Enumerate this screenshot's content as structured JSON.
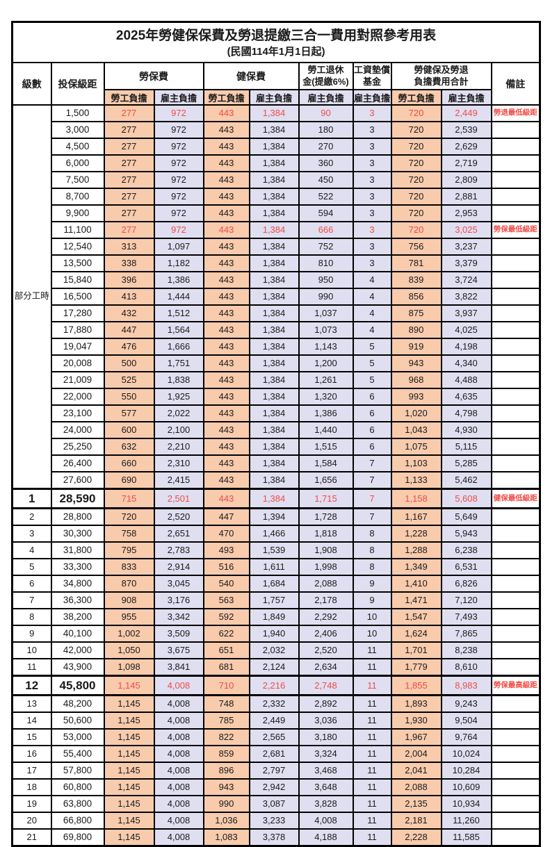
{
  "title": "2025年勞健保保費及勞退提繳三合一費用對照參考用表",
  "subtitle": "(民國114年1月1日起)",
  "headers": {
    "level": "級數",
    "bracket": "投保級距",
    "labor_ins": "勞保費",
    "health_ins": "健保費",
    "pension": "勞工退休\n金(提繳6%)",
    "wage_fund": "工資墊償\n基金",
    "total": "勞健保及勞退\n負擔費用合計",
    "remark": "備註",
    "employee": "勞工負擔",
    "employer": "雇主負擔"
  },
  "part_time_label": "部分工時",
  "colors": {
    "employee_bg": "#F8CBAD",
    "employer_bg": "#DFDFF1",
    "highlight_red": "#F24B44",
    "border": "#000000"
  },
  "rows": [
    {
      "level": "",
      "bracket": "1,500",
      "values": [
        "277",
        "972",
        "443",
        "1,384",
        "90",
        "3",
        "720",
        "2,449"
      ],
      "note": "勞退最低級距",
      "red": true
    },
    {
      "level": "",
      "bracket": "3,000",
      "values": [
        "277",
        "972",
        "443",
        "1,384",
        "180",
        "3",
        "720",
        "2,539"
      ],
      "note": ""
    },
    {
      "level": "",
      "bracket": "4,500",
      "values": [
        "277",
        "972",
        "443",
        "1,384",
        "270",
        "3",
        "720",
        "2,629"
      ],
      "note": ""
    },
    {
      "level": "",
      "bracket": "6,000",
      "values": [
        "277",
        "972",
        "443",
        "1,384",
        "360",
        "3",
        "720",
        "2,719"
      ],
      "note": ""
    },
    {
      "level": "",
      "bracket": "7,500",
      "values": [
        "277",
        "972",
        "443",
        "1,384",
        "450",
        "3",
        "720",
        "2,809"
      ],
      "note": ""
    },
    {
      "level": "",
      "bracket": "8,700",
      "values": [
        "277",
        "972",
        "443",
        "1,384",
        "522",
        "3",
        "720",
        "2,881"
      ],
      "note": ""
    },
    {
      "level": "",
      "bracket": "9,900",
      "values": [
        "277",
        "972",
        "443",
        "1,384",
        "594",
        "3",
        "720",
        "2,953"
      ],
      "note": ""
    },
    {
      "level": "",
      "bracket": "11,100",
      "values": [
        "277",
        "972",
        "443",
        "1,384",
        "666",
        "3",
        "720",
        "3,025"
      ],
      "note": "勞保最低級距",
      "red": true
    },
    {
      "level": "",
      "bracket": "12,540",
      "values": [
        "313",
        "1,097",
        "443",
        "1,384",
        "752",
        "3",
        "756",
        "3,237"
      ],
      "note": ""
    },
    {
      "level": "",
      "bracket": "13,500",
      "values": [
        "338",
        "1,182",
        "443",
        "1,384",
        "810",
        "3",
        "781",
        "3,379"
      ],
      "note": ""
    },
    {
      "level": "",
      "bracket": "15,840",
      "values": [
        "396",
        "1,386",
        "443",
        "1,384",
        "950",
        "4",
        "839",
        "3,724"
      ],
      "note": ""
    },
    {
      "level": "",
      "bracket": "16,500",
      "values": [
        "413",
        "1,444",
        "443",
        "1,384",
        "990",
        "4",
        "856",
        "3,822"
      ],
      "note": ""
    },
    {
      "level": "",
      "bracket": "17,280",
      "values": [
        "432",
        "1,512",
        "443",
        "1,384",
        "1,037",
        "4",
        "875",
        "3,937"
      ],
      "note": ""
    },
    {
      "level": "",
      "bracket": "17,880",
      "values": [
        "447",
        "1,564",
        "443",
        "1,384",
        "1,073",
        "4",
        "890",
        "4,025"
      ],
      "note": ""
    },
    {
      "level": "",
      "bracket": "19,047",
      "values": [
        "476",
        "1,666",
        "443",
        "1,384",
        "1,143",
        "5",
        "919",
        "4,198"
      ],
      "note": ""
    },
    {
      "level": "",
      "bracket": "20,008",
      "values": [
        "500",
        "1,751",
        "443",
        "1,384",
        "1,200",
        "5",
        "943",
        "4,340"
      ],
      "note": ""
    },
    {
      "level": "",
      "bracket": "21,009",
      "values": [
        "525",
        "1,838",
        "443",
        "1,384",
        "1,261",
        "5",
        "968",
        "4,488"
      ],
      "note": ""
    },
    {
      "level": "",
      "bracket": "22,000",
      "values": [
        "550",
        "1,925",
        "443",
        "1,384",
        "1,320",
        "6",
        "993",
        "4,635"
      ],
      "note": ""
    },
    {
      "level": "",
      "bracket": "23,100",
      "values": [
        "577",
        "2,022",
        "443",
        "1,384",
        "1,386",
        "6",
        "1,020",
        "4,798"
      ],
      "note": ""
    },
    {
      "level": "",
      "bracket": "24,000",
      "values": [
        "600",
        "2,100",
        "443",
        "1,384",
        "1,440",
        "6",
        "1,043",
        "4,930"
      ],
      "note": ""
    },
    {
      "level": "",
      "bracket": "25,250",
      "values": [
        "632",
        "2,210",
        "443",
        "1,384",
        "1,515",
        "6",
        "1,075",
        "5,115"
      ],
      "note": ""
    },
    {
      "level": "",
      "bracket": "26,400",
      "values": [
        "660",
        "2,310",
        "443",
        "1,384",
        "1,584",
        "7",
        "1,103",
        "5,285"
      ],
      "note": ""
    },
    {
      "level": "",
      "bracket": "27,600",
      "values": [
        "690",
        "2,415",
        "443",
        "1,384",
        "1,656",
        "7",
        "1,133",
        "5,462"
      ],
      "note": ""
    },
    {
      "level": "1",
      "bracket": "28,590",
      "values": [
        "715",
        "2,501",
        "443",
        "1,384",
        "1,715",
        "7",
        "1,158",
        "5,608"
      ],
      "note": "健保最低級距",
      "red": true,
      "big": true
    },
    {
      "level": "2",
      "bracket": "28,800",
      "values": [
        "720",
        "2,520",
        "447",
        "1,394",
        "1,728",
        "7",
        "1,167",
        "5,649"
      ],
      "note": ""
    },
    {
      "level": "3",
      "bracket": "30,300",
      "values": [
        "758",
        "2,651",
        "470",
        "1,466",
        "1,818",
        "8",
        "1,228",
        "5,943"
      ],
      "note": ""
    },
    {
      "level": "4",
      "bracket": "31,800",
      "values": [
        "795",
        "2,783",
        "493",
        "1,539",
        "1,908",
        "8",
        "1,288",
        "6,238"
      ],
      "note": ""
    },
    {
      "level": "5",
      "bracket": "33,300",
      "values": [
        "833",
        "2,914",
        "516",
        "1,611",
        "1,998",
        "8",
        "1,349",
        "6,531"
      ],
      "note": ""
    },
    {
      "level": "6",
      "bracket": "34,800",
      "values": [
        "870",
        "3,045",
        "540",
        "1,684",
        "2,088",
        "9",
        "1,410",
        "6,826"
      ],
      "note": ""
    },
    {
      "level": "7",
      "bracket": "36,300",
      "values": [
        "908",
        "3,176",
        "563",
        "1,757",
        "2,178",
        "9",
        "1,471",
        "7,120"
      ],
      "note": ""
    },
    {
      "level": "8",
      "bracket": "38,200",
      "values": [
        "955",
        "3,342",
        "592",
        "1,849",
        "2,292",
        "10",
        "1,547",
        "7,493"
      ],
      "note": ""
    },
    {
      "level": "9",
      "bracket": "40,100",
      "values": [
        "1,002",
        "3,509",
        "622",
        "1,940",
        "2,406",
        "10",
        "1,624",
        "7,865"
      ],
      "note": ""
    },
    {
      "level": "10",
      "bracket": "42,000",
      "values": [
        "1,050",
        "3,675",
        "651",
        "2,032",
        "2,520",
        "11",
        "1,701",
        "8,238"
      ],
      "note": ""
    },
    {
      "level": "11",
      "bracket": "43,900",
      "values": [
        "1,098",
        "3,841",
        "681",
        "2,124",
        "2,634",
        "11",
        "1,779",
        "8,610"
      ],
      "note": ""
    },
    {
      "level": "12",
      "bracket": "45,800",
      "values": [
        "1,145",
        "4,008",
        "710",
        "2,216",
        "2,748",
        "11",
        "1,855",
        "8,983"
      ],
      "note": "勞保最高級距",
      "red": true,
      "big": true
    },
    {
      "level": "13",
      "bracket": "48,200",
      "values": [
        "1,145",
        "4,008",
        "748",
        "2,332",
        "2,892",
        "11",
        "1,893",
        "9,243"
      ],
      "note": ""
    },
    {
      "level": "14",
      "bracket": "50,600",
      "values": [
        "1,145",
        "4,008",
        "785",
        "2,449",
        "3,036",
        "11",
        "1,930",
        "9,504"
      ],
      "note": ""
    },
    {
      "level": "15",
      "bracket": "53,000",
      "values": [
        "1,145",
        "4,008",
        "822",
        "2,565",
        "3,180",
        "11",
        "1,967",
        "9,764"
      ],
      "note": ""
    },
    {
      "level": "16",
      "bracket": "55,400",
      "values": [
        "1,145",
        "4,008",
        "859",
        "2,681",
        "3,324",
        "11",
        "2,004",
        "10,024"
      ],
      "note": ""
    },
    {
      "level": "17",
      "bracket": "57,800",
      "values": [
        "1,145",
        "4,008",
        "896",
        "2,797",
        "3,468",
        "11",
        "2,041",
        "10,284"
      ],
      "note": ""
    },
    {
      "level": "18",
      "bracket": "60,800",
      "values": [
        "1,145",
        "4,008",
        "943",
        "2,942",
        "3,648",
        "11",
        "2,088",
        "10,609"
      ],
      "note": ""
    },
    {
      "level": "19",
      "bracket": "63,800",
      "values": [
        "1,145",
        "4,008",
        "990",
        "3,087",
        "3,828",
        "11",
        "2,135",
        "10,934"
      ],
      "note": ""
    },
    {
      "level": "20",
      "bracket": "66,800",
      "values": [
        "1,145",
        "4,008",
        "1,036",
        "3,233",
        "4,008",
        "11",
        "2,181",
        "11,260"
      ],
      "note": ""
    },
    {
      "level": "21",
      "bracket": "69,800",
      "values": [
        "1,145",
        "4,008",
        "1,083",
        "3,378",
        "4,188",
        "11",
        "2,228",
        "11,585"
      ],
      "note": ""
    }
  ]
}
